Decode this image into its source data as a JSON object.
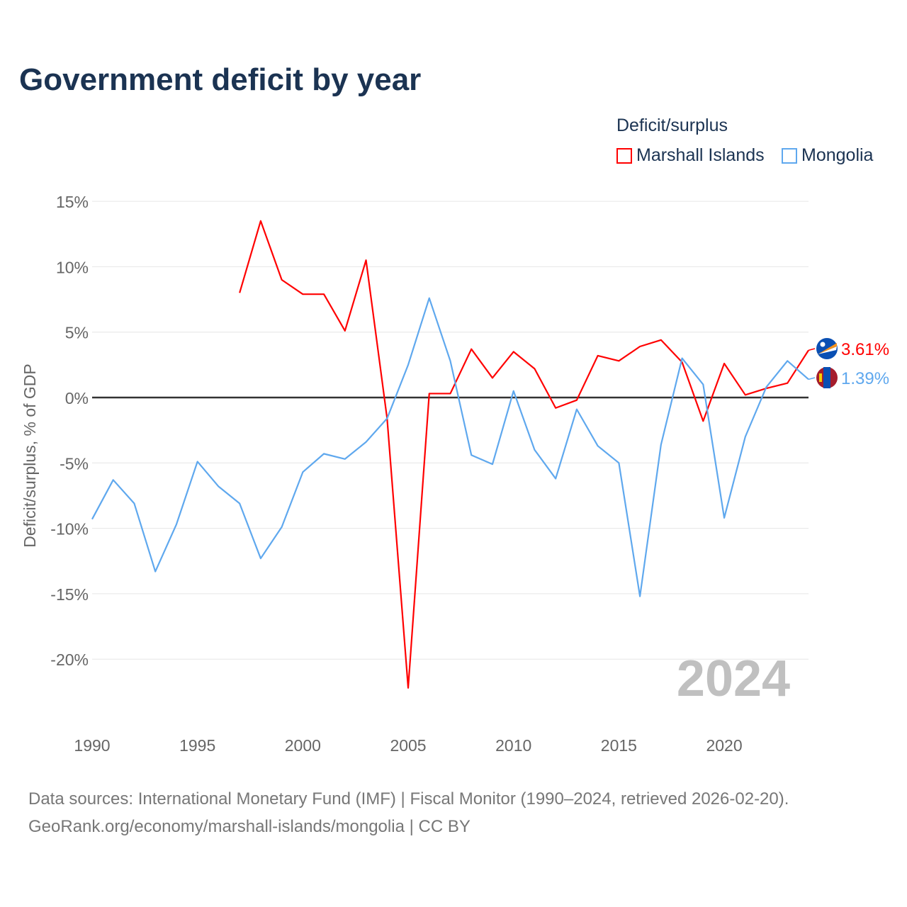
{
  "chart_data": {
    "type": "line",
    "title": "Government deficit by year",
    "ylabel": "Deficit/surplus, % of GDP",
    "xlabel": "",
    "ylim": [
      -25,
      15
    ],
    "xlim": [
      1990,
      2024
    ],
    "yticks": [
      15,
      10,
      5,
      0,
      -5,
      -10,
      -15,
      -20
    ],
    "ytick_labels": [
      "15%",
      "10%",
      "5%",
      "0%",
      "-5%",
      "-10%",
      "-15%",
      "-20%"
    ],
    "xticks": [
      1990,
      1995,
      2000,
      2005,
      2010,
      2015,
      2020
    ],
    "xtick_labels": [
      "1990",
      "1995",
      "2000",
      "2005",
      "2010",
      "2015",
      "2020"
    ],
    "legend_title": "Deficit/surplus",
    "legend_placement": "top-right",
    "year_watermark": "2024",
    "series": [
      {
        "name": "Marshall Islands",
        "color": "#ff0000",
        "end_label": "3.61%",
        "flag": "marshall-islands-flag",
        "x": [
          1997,
          1998,
          1999,
          2000,
          2001,
          2002,
          2003,
          2004,
          2005,
          2006,
          2007,
          2008,
          2009,
          2010,
          2011,
          2012,
          2013,
          2014,
          2015,
          2016,
          2017,
          2018,
          2019,
          2020,
          2021,
          2022,
          2023,
          2024
        ],
        "values": [
          8.0,
          13.5,
          9.0,
          7.9,
          7.9,
          5.1,
          10.5,
          -1.6,
          -22.2,
          0.3,
          0.3,
          3.7,
          1.5,
          3.5,
          2.2,
          -0.8,
          -0.2,
          3.2,
          2.8,
          3.9,
          4.4,
          2.7,
          -1.8,
          2.6,
          0.2,
          0.7,
          1.1,
          3.61
        ]
      },
      {
        "name": "Mongolia",
        "color": "#5fa8ee",
        "end_label": "1.39%",
        "flag": "mongolia-flag",
        "x": [
          1990,
          1991,
          1992,
          1993,
          1994,
          1995,
          1996,
          1997,
          1998,
          1999,
          2000,
          2001,
          2002,
          2003,
          2004,
          2005,
          2006,
          2007,
          2008,
          2009,
          2010,
          2011,
          2012,
          2013,
          2014,
          2015,
          2016,
          2017,
          2018,
          2019,
          2020,
          2021,
          2022,
          2023,
          2024
        ],
        "values": [
          -9.3,
          -6.3,
          -8.1,
          -13.3,
          -9.7,
          -4.9,
          -6.8,
          -8.1,
          -12.3,
          -9.9,
          -5.7,
          -4.3,
          -4.7,
          -3.4,
          -1.6,
          2.5,
          7.6,
          2.8,
          -4.4,
          -5.1,
          0.5,
          -4.0,
          -6.2,
          -0.9,
          -3.7,
          -5.0,
          -15.2,
          -3.6,
          3.0,
          1.0,
          -9.2,
          -3.0,
          0.8,
          2.8,
          1.39
        ]
      }
    ]
  },
  "footer": {
    "line1": "Data sources: International Monetary Fund (IMF) | Fiscal Monitor (1990–2024, retrieved 2026-02-20).",
    "line2": "GeoRank.org/economy/marshall-islands/mongolia | CC BY"
  }
}
